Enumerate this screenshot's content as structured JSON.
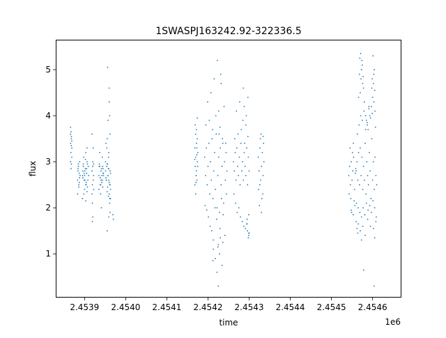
{
  "chart_data": {
    "type": "scatter",
    "title": "1SWASPJ163242.92-322336.5",
    "xlabel": "time",
    "ylabel": "flux",
    "x_offset_label": "1e6",
    "xlim": [
      2453830,
      2454670
    ],
    "ylim": [
      0.05,
      5.65
    ],
    "grid": false,
    "legend": "none",
    "marker_color": "#1f77b4",
    "x_ticks": [
      {
        "value": 2453900,
        "label": "2.4539"
      },
      {
        "value": 2454000,
        "label": "2.4540"
      },
      {
        "value": 2454100,
        "label": "2.4541"
      },
      {
        "value": 2454200,
        "label": "2.4542"
      },
      {
        "value": 2454300,
        "label": "2.4543"
      },
      {
        "value": 2454400,
        "label": "2.4544"
      },
      {
        "value": 2454500,
        "label": "2.4545"
      },
      {
        "value": 2454600,
        "label": "2.4546"
      }
    ],
    "y_ticks": [
      {
        "value": 1,
        "label": "1"
      },
      {
        "value": 2,
        "label": "2"
      },
      {
        "value": 3,
        "label": "3"
      },
      {
        "value": 4,
        "label": "4"
      },
      {
        "value": 5,
        "label": "5"
      }
    ],
    "series": [
      {
        "x": [
          2453866,
          2453867,
          2453868,
          2453869,
          2453866,
          2453868,
          2453867,
          2453869,
          2453866,
          2453868,
          2453867,
          2453866,
          2453869,
          2453868,
          2453883,
          2453884,
          2453885,
          2453886,
          2453887,
          2453888,
          2453883,
          2453885,
          2453887,
          2453889,
          2453884,
          2453886,
          2453888,
          2453895,
          2453897,
          2453899,
          2453901,
          2453903,
          2453905,
          2453907,
          2453896,
          2453898,
          2453900,
          2453902,
          2453904,
          2453906,
          2453895,
          2453899,
          2453903,
          2453907,
          2453898,
          2453902,
          2453906,
          2453897,
          2453901,
          2453905,
          2453900,
          2453904,
          2453896,
          2453908,
          2453909,
          2453910,
          2453903,
          2453906,
          2453918,
          2453919,
          2453920,
          2453921,
          2453922,
          2453918,
          2453920,
          2453922,
          2453919,
          2453921,
          2453920,
          2453918,
          2453922,
          2453919,
          2453935,
          2453937,
          2453939,
          2453941,
          2453943,
          2453945,
          2453936,
          2453938,
          2453940,
          2453942,
          2453944,
          2453946,
          2453935,
          2453939,
          2453943,
          2453937,
          2453941,
          2453945,
          2453938,
          2453942,
          2453936,
          2453944,
          2453940,
          2453946,
          2453951,
          2453953,
          2453955,
          2453957,
          2453959,
          2453961,
          2453963,
          2453952,
          2453954,
          2453956,
          2453958,
          2453960,
          2453962,
          2453951,
          2453955,
          2453959,
          2453963,
          2453953,
          2453957,
          2453961,
          2453954,
          2453958,
          2453962,
          2453952,
          2453956,
          2453960,
          2453955,
          2453959,
          2453962,
          2453961,
          2453958,
          2453957,
          2453960,
          2453962,
          2453961,
          2453963,
          2453960,
          2453959,
          2453956,
          2453955,
          2453969,
          2453970
        ],
        "y": [
          3.4,
          3.2,
          3.55,
          3.1,
          3.75,
          2.95,
          3.65,
          3.3,
          3.0,
          3.5,
          2.85,
          3.6,
          3.45,
          3.35,
          2.6,
          2.8,
          2.9,
          2.5,
          2.75,
          2.65,
          2.3,
          2.95,
          2.55,
          2.7,
          2.85,
          2.45,
          3.0,
          2.7,
          2.9,
          2.6,
          2.8,
          2.5,
          2.75,
          2.95,
          2.65,
          3.1,
          2.4,
          2.85,
          2.55,
          3.0,
          2.2,
          2.75,
          3.2,
          2.45,
          2.3,
          3.05,
          2.35,
          2.95,
          2.6,
          2.85,
          2.7,
          2.5,
          2.8,
          2.6,
          2.9,
          2.7,
          2.15,
          3.3,
          2.8,
          2.5,
          3.0,
          2.6,
          2.7,
          2.3,
          2.9,
          2.95,
          2.1,
          3.3,
          1.8,
          3.6,
          2.4,
          1.7,
          2.7,
          2.9,
          2.5,
          2.85,
          2.6,
          2.75,
          2.95,
          2.65,
          2.8,
          2.55,
          2.9,
          2.7,
          2.4,
          2.3,
          3.1,
          3.2,
          2.0,
          2.85,
          2.5,
          2.7,
          2.9,
          2.45,
          2.6,
          2.75,
          2.8,
          2.6,
          2.95,
          2.7,
          2.85,
          2.5,
          2.75,
          2.65,
          2.9,
          2.45,
          3.1,
          2.55,
          2.8,
          3.0,
          2.35,
          3.2,
          2.4,
          2.6,
          2.7,
          2.2,
          3.3,
          2.85,
          2.5,
          3.4,
          2.95,
          2.3,
          3.5,
          2.6,
          3.6,
          4.0,
          2.25,
          3.9,
          4.3,
          1.9,
          2.1,
          2.2,
          4.6,
          1.8,
          5.05,
          1.5,
          1.85,
          1.75
        ],
        "name": ""
      },
      {
        "x": [
          2454168,
          2454169,
          2454170,
          2454171,
          2454172,
          2454173,
          2454174,
          2454175,
          2454168,
          2454170,
          2454172,
          2454174,
          2454169,
          2454171,
          2454173,
          2454175,
          2454170,
          2454172,
          2454171,
          2454174,
          2454168,
          2454173,
          2454192,
          2454194,
          2454196,
          2454198,
          2454200,
          2454202,
          2454204,
          2454206,
          2454208,
          2454210,
          2454212,
          2454214,
          2454216,
          2454218,
          2454220,
          2454222,
          2454224,
          2454226,
          2454228,
          2454230,
          2454232,
          2454234,
          2454236,
          2454238,
          2454240,
          2454242,
          2454244,
          2454246,
          2454193,
          2454197,
          2454201,
          2454205,
          2454209,
          2454213,
          2454217,
          2454221,
          2454225,
          2454229,
          2454233,
          2454237,
          2454241,
          2454245,
          2454195,
          2454203,
          2454211,
          2454219,
          2454227,
          2454235,
          2454243,
          2454199,
          2454207,
          2454215,
          2454223,
          2454231,
          2454239,
          2454222,
          2454225,
          2454228,
          2454218,
          2454213,
          2454230,
          2454234,
          2454236,
          2454232,
          2454224,
          2454229,
          2454212,
          2454226,
          2454262,
          2454264,
          2454266,
          2454268,
          2454270,
          2454272,
          2454274,
          2454276,
          2454278,
          2454280,
          2454282,
          2454284,
          2454286,
          2454288,
          2454290,
          2454292,
          2454294,
          2454296,
          2454298,
          2454300,
          2454263,
          2454267,
          2454271,
          2454275,
          2454279,
          2454283,
          2454287,
          2454291,
          2454295,
          2454299,
          2454265,
          2454273,
          2454281,
          2454289,
          2454297,
          2454269,
          2454277,
          2454285,
          2454293,
          2454299,
          2454298,
          2454296,
          2454300,
          2454294,
          2454292,
          2454297,
          2454299,
          2454288,
          2454286,
          2454295,
          2454322,
          2454324,
          2454326,
          2454328,
          2454330,
          2454332,
          2454334,
          2454336,
          2454323,
          2454327,
          2454331,
          2454335,
          2454325,
          2454329,
          2454333,
          2454326,
          2454330,
          2454334
        ],
        "y": [
          3.3,
          2.9,
          3.1,
          2.7,
          3.4,
          2.6,
          3.0,
          3.2,
          2.5,
          3.6,
          2.8,
          3.5,
          3.8,
          2.7,
          3.3,
          2.9,
          2.3,
          3.7,
          2.55,
          3.95,
          3.05,
          3.15,
          3.1,
          2.7,
          3.3,
          2.5,
          2.9,
          3.4,
          2.3,
          3.0,
          2.6,
          3.5,
          2.2,
          2.8,
          3.2,
          2.4,
          3.6,
          2.0,
          2.7,
          3.1,
          1.9,
          3.3,
          2.5,
          2.9,
          3.4,
          2.1,
          3.0,
          2.6,
          3.2,
          2.8,
          2.05,
          1.95,
          1.8,
          1.6,
          1.5,
          1.3,
          2.0,
          1.75,
          1.2,
          1.55,
          2.2,
          1.85,
          1.4,
          2.3,
          3.8,
          3.9,
          3.7,
          4.0,
          3.6,
          3.5,
          3.4,
          4.3,
          4.5,
          4.8,
          5.2,
          4.9,
          4.2,
          0.6,
          0.3,
          1.0,
          0.9,
          1.1,
          1.35,
          0.75,
          1.25,
          4.7,
          1.15,
          3.75,
          0.85,
          4.1,
          3.0,
          2.8,
          3.2,
          2.6,
          3.3,
          2.9,
          2.7,
          3.1,
          2.5,
          3.4,
          2.8,
          3.0,
          2.6,
          3.2,
          2.9,
          2.7,
          3.3,
          2.5,
          3.1,
          2.8,
          2.3,
          2.1,
          1.9,
          2.0,
          1.8,
          1.7,
          1.6,
          1.55,
          1.75,
          1.85,
          3.5,
          3.6,
          3.7,
          3.4,
          3.55,
          4.1,
          4.3,
          3.9,
          4.0,
          1.4,
          1.35,
          1.5,
          1.45,
          1.65,
          3.8,
          4.4,
          1.45,
          4.2,
          4.6,
          1.65,
          3.1,
          2.8,
          3.3,
          2.6,
          2.9,
          3.2,
          2.7,
          3.0,
          2.4,
          3.5,
          2.2,
          3.4,
          2.05,
          3.6,
          2.3,
          2.5,
          1.9,
          3.55
        ],
        "name": ""
      },
      {
        "x": [
          2454542,
          2454544,
          2454546,
          2454548,
          2454550,
          2454552,
          2454554,
          2454556,
          2454558,
          2454543,
          2454547,
          2454551,
          2454555,
          2454559,
          2454545,
          2454549,
          2454553,
          2454557,
          2454560,
          2454562,
          2454564,
          2454566,
          2454568,
          2454570,
          2454572,
          2454574,
          2454576,
          2454578,
          2454580,
          2454582,
          2454584,
          2454586,
          2454588,
          2454590,
          2454592,
          2454594,
          2454596,
          2454598,
          2454600,
          2454602,
          2454604,
          2454606,
          2454608,
          2454610,
          2454561,
          2454565,
          2454569,
          2454573,
          2454577,
          2454581,
          2454585,
          2454589,
          2454593,
          2454597,
          2454601,
          2454605,
          2454609,
          2454563,
          2454567,
          2454571,
          2454575,
          2454579,
          2454583,
          2454587,
          2454591,
          2454595,
          2454599,
          2454603,
          2454607,
          2454570,
          2454572,
          2454574,
          2454568,
          2454576,
          2454566,
          2454578,
          2454580,
          2454571,
          2454573,
          2454575,
          2454577,
          2454569,
          2454600,
          2454602,
          2454604,
          2454598,
          2454601,
          2454603,
          2454605,
          2454599,
          2454597,
          2454606,
          2454583,
          2454587,
          2454591,
          2454585,
          2454589,
          2454593,
          2454570,
          2454573,
          2454576,
          2454560,
          2454564,
          2454602,
          2454605,
          2454608,
          2454595,
          2454588,
          2454582,
          2454565,
          2454562,
          2454548,
          2454553,
          2454578,
          2454604
        ],
        "y": [
          2.7,
          2.9,
          2.5,
          3.0,
          2.6,
          2.8,
          3.1,
          2.4,
          2.75,
          2.3,
          2.2,
          3.2,
          2.15,
          2.85,
          3.3,
          1.9,
          3.4,
          2.05,
          2.8,
          3.0,
          2.6,
          3.2,
          2.5,
          3.3,
          2.7,
          3.1,
          2.4,
          2.9,
          2.6,
          3.4,
          2.3,
          3.0,
          2.7,
          2.5,
          3.2,
          2.8,
          2.2,
          3.5,
          2.6,
          3.0,
          2.4,
          3.1,
          2.7,
          2.5,
          2.1,
          2.0,
          1.9,
          1.8,
          2.0,
          1.85,
          2.1,
          1.95,
          2.05,
          1.9,
          2.15,
          2.0,
          1.8,
          3.6,
          3.8,
          4.0,
          3.9,
          4.1,
          3.7,
          3.85,
          4.2,
          3.95,
          4.05,
          4.3,
          3.75,
          4.5,
          4.8,
          5.2,
          4.9,
          4.7,
          4.4,
          4.6,
          4.3,
          5.35,
          5.0,
          5.1,
          4.85,
          5.25,
          4.4,
          4.7,
          5.0,
          4.6,
          5.3,
          4.9,
          4.55,
          4.8,
          4.2,
          4.1,
          4.0,
          3.8,
          4.15,
          3.9,
          3.7,
          4.0,
          1.5,
          1.3,
          1.6,
          1.7,
          1.45,
          1.55,
          1.35,
          1.7,
          1.6,
          1.75,
          1.4,
          1.65,
          1.55,
          1.95,
          1.85,
          0.65,
          0.3
        ],
        "name": ""
      }
    ]
  }
}
